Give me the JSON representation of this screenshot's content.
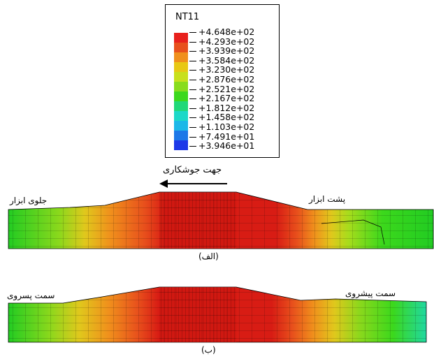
{
  "legend": {
    "title": "NT11",
    "entries": [
      {
        "label": "+4.648e+02",
        "color": "#e8201c"
      },
      {
        "label": "+4.293e+02",
        "color": "#e8501c"
      },
      {
        "label": "+3.939e+02",
        "color": "#f0901c"
      },
      {
        "label": "+3.584e+02",
        "color": "#e8c814"
      },
      {
        "label": "+3.230e+02",
        "color": "#c8e01c"
      },
      {
        "label": "+2.876e+02",
        "color": "#88dc1c"
      },
      {
        "label": "+2.521e+02",
        "color": "#3cd81c"
      },
      {
        "label": "+2.167e+02",
        "color": "#20d878"
      },
      {
        "label": "+1.812e+02",
        "color": "#1cd8c8"
      },
      {
        "label": "+1.458e+02",
        "color": "#1cb8e8"
      },
      {
        "label": "+1.103e+02",
        "color": "#1c78e8"
      },
      {
        "label": "+7.491e+01",
        "color": "#1c38e8"
      },
      {
        "label": "+3.946e+01",
        "color": "#1c14d8"
      }
    ]
  },
  "labels": {
    "welding_direction": "جهت جوشکاری",
    "tool_front": "جلوی ابزار",
    "tool_back": "پشت ابزار",
    "caption_a": "(الف)",
    "retreating_side": "سمت پسروی",
    "advancing_side": "سمت پیشروی",
    "caption_b": "(ب)"
  },
  "colors": {
    "hot": "#d81c14",
    "warm": "#e8501c",
    "orange": "#f09a1c",
    "yellow": "#d8d01c",
    "green": "#22cc22",
    "teal": "#20d8a0",
    "mesh": "#000000"
  }
}
